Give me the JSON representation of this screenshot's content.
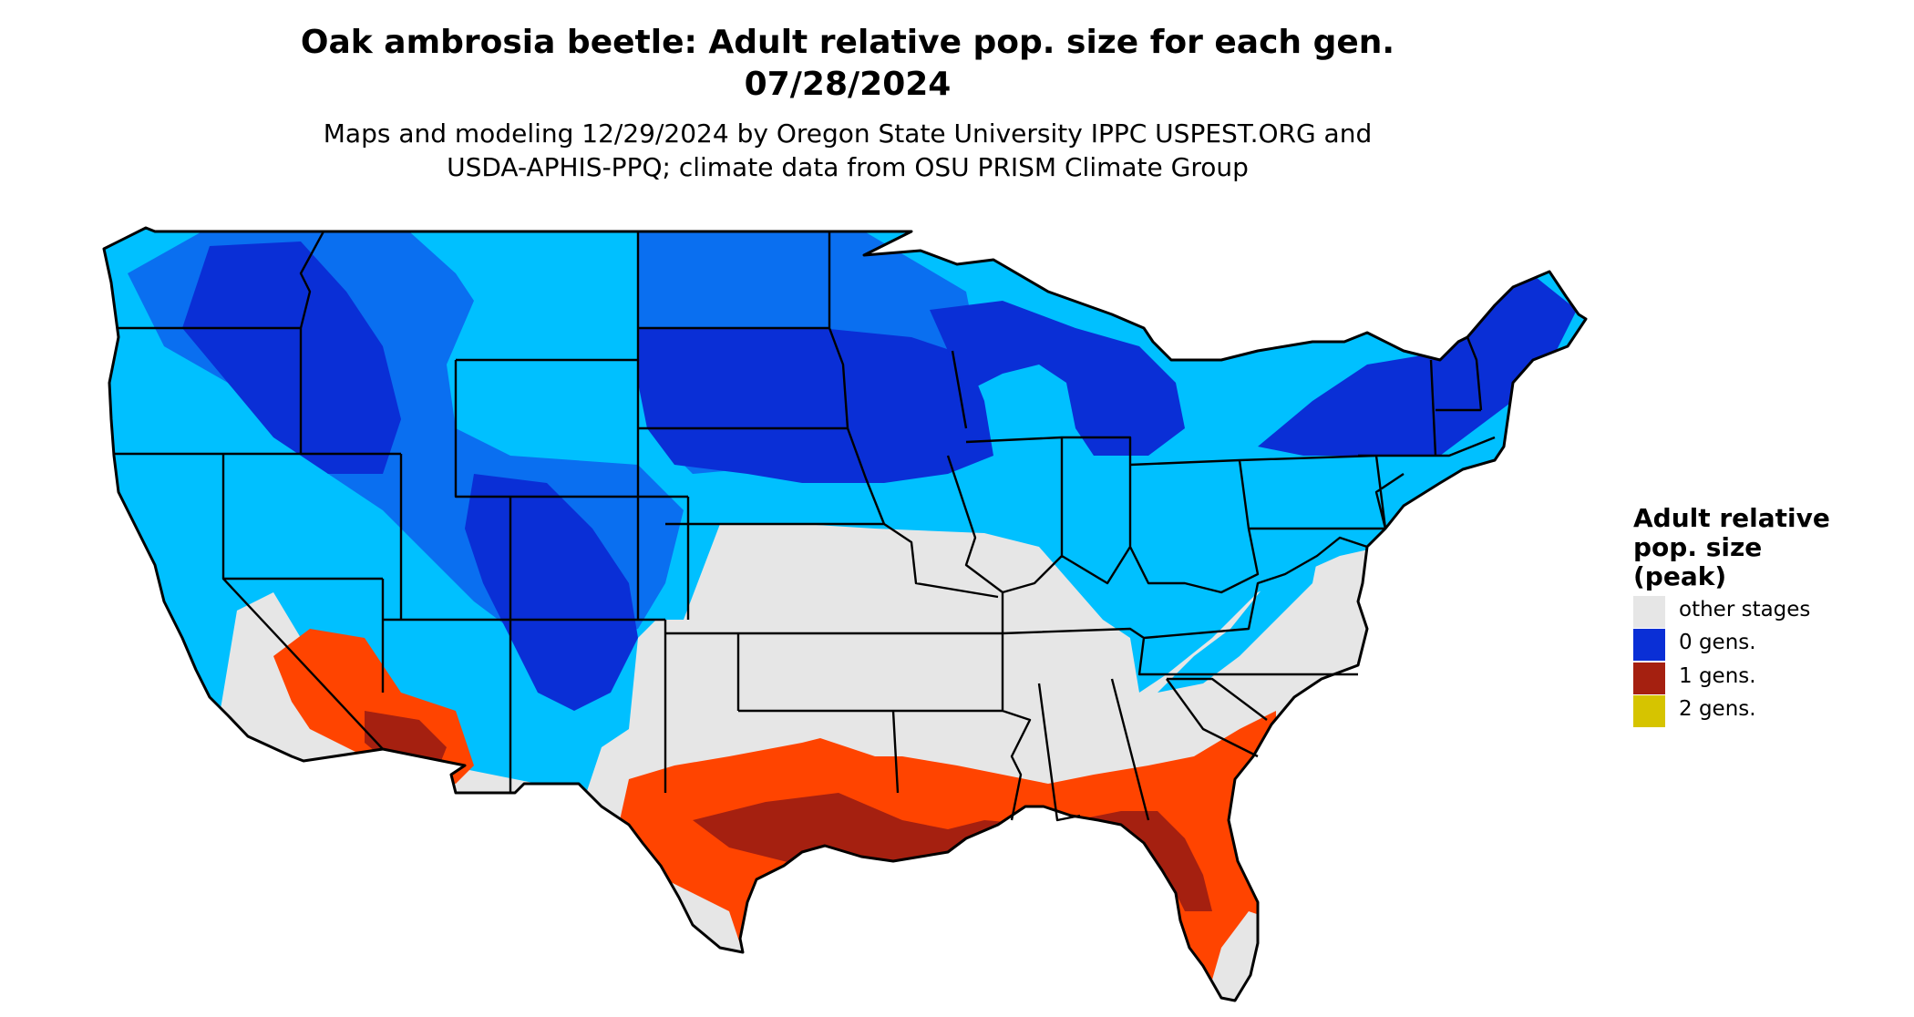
{
  "header": {
    "title_line1": "Oak ambrosia beetle: Adult relative pop. size for each gen.",
    "title_line2": "07/28/2024",
    "subtitle_line1": "Maps and modeling 12/29/2024 by Oregon State University IPPC USPEST.ORG and",
    "subtitle_line2": "USDA-APHIS-PPQ; climate data from OSU PRISM Climate Group"
  },
  "legend": {
    "title_line1": "Adult relative",
    "title_line2": "pop. size",
    "title_line3": "(peak)",
    "items": [
      {
        "label": "other stages",
        "color": "#e6e6e6"
      },
      {
        "label": "0 gens.",
        "color": "#0a2fd6"
      },
      {
        "label": "1 gens.",
        "color": "#a52010"
      },
      {
        "label": "2 gens.",
        "color": "#d6c400"
      }
    ]
  },
  "map_colors": {
    "other_stages": "#e6e6e6",
    "light_blue": "#00c0ff",
    "mid_blue": "#0a6ff0",
    "dark_blue": "#0a2fd6",
    "orange": "#ff4400",
    "dark_red": "#a52010"
  }
}
